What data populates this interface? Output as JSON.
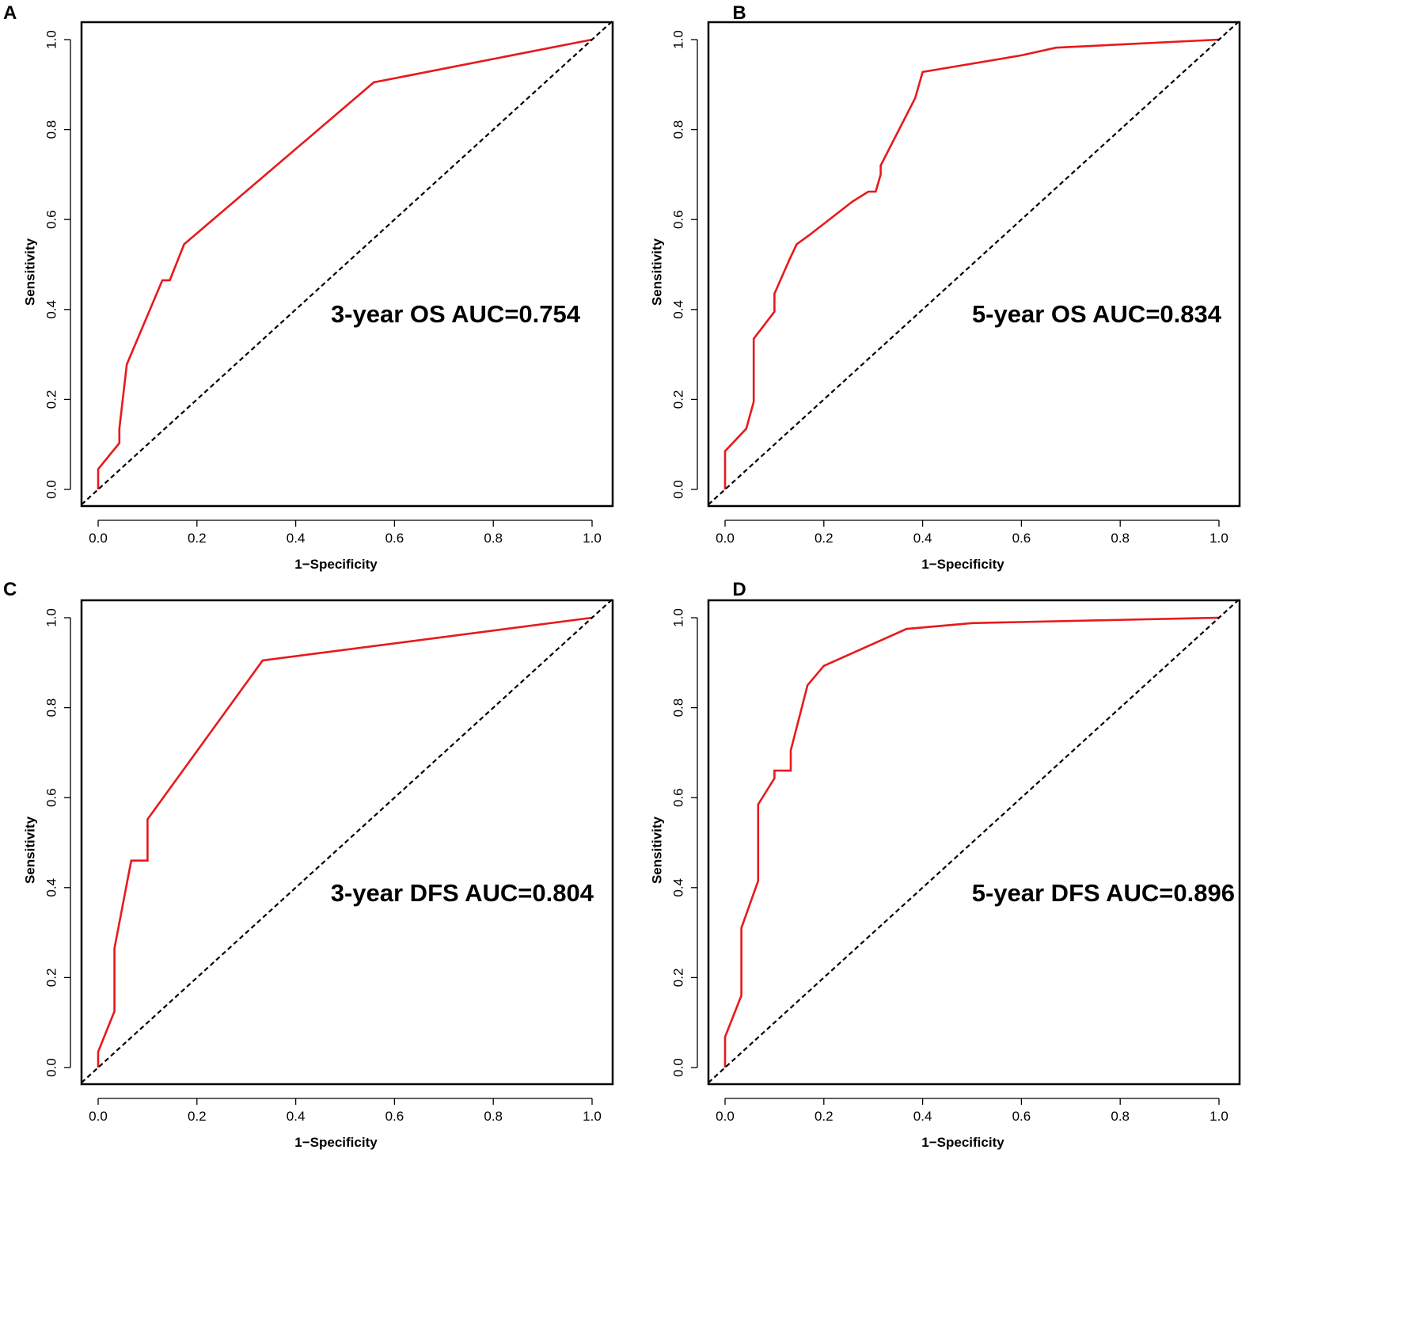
{
  "chart_data": [
    {
      "panel": "A",
      "type": "line",
      "title": "",
      "annotation": "3-year OS AUC=0.754",
      "xlabel": "1−Specificity",
      "ylabel": "Sensitivity",
      "xlim": [
        0,
        1
      ],
      "ylim": [
        0,
        1
      ],
      "xticks": [
        "0.0",
        "0.2",
        "0.4",
        "0.6",
        "0.8",
        "1.0"
      ],
      "yticks": [
        "0.0",
        "0.2",
        "0.4",
        "0.6",
        "0.8",
        "1.0"
      ],
      "series": [
        {
          "name": "ROC",
          "color": "#e8191b",
          "x": [
            0,
            0,
            0.043,
            0.043,
            0.058,
            0.13,
            0.145,
            0.174,
            0.558,
            1.0
          ],
          "y": [
            0,
            0.045,
            0.103,
            0.135,
            0.278,
            0.465,
            0.465,
            0.545,
            0.905,
            1.0
          ]
        },
        {
          "name": "reference",
          "color": "#000000",
          "dashed": true,
          "x": [
            0,
            1
          ],
          "y": [
            0,
            1
          ]
        }
      ]
    },
    {
      "panel": "B",
      "type": "line",
      "title": "",
      "annotation": "5-year OS AUC=0.834",
      "xlabel": "1−Specificity",
      "ylabel": "Sensitivity",
      "xlim": [
        0,
        1
      ],
      "ylim": [
        0,
        1
      ],
      "xticks": [
        "0.0",
        "0.2",
        "0.4",
        "0.6",
        "0.8",
        "1.0"
      ],
      "yticks": [
        "0.0",
        "0.2",
        "0.4",
        "0.6",
        "0.8",
        "1.0"
      ],
      "series": [
        {
          "name": "ROC",
          "color": "#e8191b",
          "x": [
            0,
            0,
            0.043,
            0.058,
            0.058,
            0.1,
            0.1,
            0.13,
            0.145,
            0.17,
            0.258,
            0.29,
            0.305,
            0.315,
            0.315,
            0.385,
            0.4,
            0.6,
            0.67,
            1.0
          ],
          "y": [
            0,
            0.085,
            0.135,
            0.195,
            0.335,
            0.395,
            0.435,
            0.51,
            0.545,
            0.565,
            0.64,
            0.662,
            0.662,
            0.7,
            0.72,
            0.87,
            0.928,
            0.965,
            0.982,
            1.0
          ]
        },
        {
          "name": "reference",
          "color": "#000000",
          "dashed": true,
          "x": [
            0,
            1
          ],
          "y": [
            0,
            1
          ]
        }
      ]
    },
    {
      "panel": "C",
      "type": "line",
      "title": "",
      "annotation": "3-year DFS AUC=0.804",
      "xlabel": "1−Specificity",
      "ylabel": "Sensitivity",
      "xlim": [
        0,
        1
      ],
      "ylim": [
        0,
        1
      ],
      "xticks": [
        "0.0",
        "0.2",
        "0.4",
        "0.6",
        "0.8",
        "1.0"
      ],
      "yticks": [
        "0.0",
        "0.2",
        "0.4",
        "0.6",
        "0.8",
        "1.0"
      ],
      "series": [
        {
          "name": "ROC",
          "color": "#e8191b",
          "x": [
            0,
            0,
            0.033,
            0.033,
            0.067,
            0.1,
            0.1,
            0.333,
            1.0
          ],
          "y": [
            0,
            0.035,
            0.125,
            0.265,
            0.46,
            0.46,
            0.552,
            0.905,
            1.0
          ]
        },
        {
          "name": "reference",
          "color": "#000000",
          "dashed": true,
          "x": [
            0,
            1
          ],
          "y": [
            0,
            1
          ]
        }
      ]
    },
    {
      "panel": "D",
      "type": "line",
      "title": "",
      "annotation": "5-year DFS AUC=0.896",
      "xlabel": "1−Specificity",
      "ylabel": "Sensitivity",
      "xlim": [
        0,
        1
      ],
      "ylim": [
        0,
        1
      ],
      "xticks": [
        "0.0",
        "0.2",
        "0.4",
        "0.6",
        "0.8",
        "1.0"
      ],
      "yticks": [
        "0.0",
        "0.2",
        "0.4",
        "0.6",
        "0.8",
        "1.0"
      ],
      "series": [
        {
          "name": "ROC",
          "color": "#e8191b",
          "x": [
            0,
            0,
            0.033,
            0.033,
            0.067,
            0.067,
            0.1,
            0.1,
            0.133,
            0.133,
            0.167,
            0.2,
            0.367,
            0.5,
            1.0
          ],
          "y": [
            0,
            0.068,
            0.16,
            0.31,
            0.415,
            0.585,
            0.643,
            0.66,
            0.66,
            0.705,
            0.85,
            0.893,
            0.975,
            0.988,
            1.0
          ]
        },
        {
          "name": "reference",
          "color": "#000000",
          "dashed": true,
          "x": [
            0,
            1
          ],
          "y": [
            0,
            1
          ]
        }
      ]
    }
  ]
}
